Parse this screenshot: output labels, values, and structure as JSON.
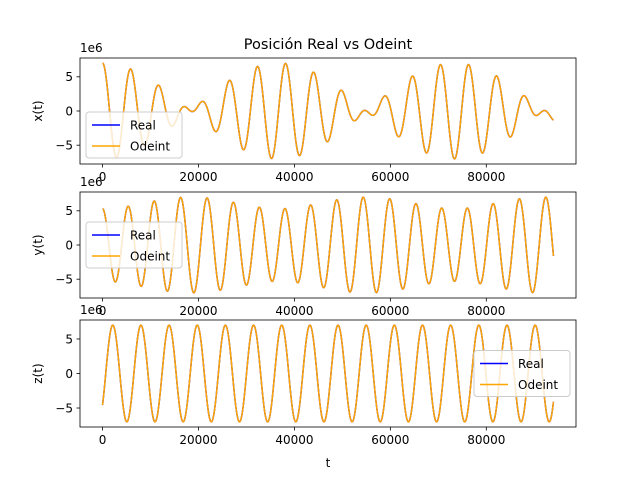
{
  "figure": {
    "title": "Posición Real vs Odeint",
    "xlabel": "t"
  },
  "colors": {
    "real": "#0000ff",
    "odeint": "#ffa500",
    "legend_frame": "#cccccc"
  },
  "chart_data": [
    {
      "type": "line",
      "title": "Posición Real vs Odeint",
      "ylabel": "x(t)",
      "xlabel": "",
      "offset_text": "1e6",
      "xlim": [
        -4700,
        98700
      ],
      "ylim": [
        -7750000,
        7750000
      ],
      "xticks": [
        0,
        20000,
        40000,
        60000,
        80000
      ],
      "yticks": [
        -5,
        0,
        5
      ],
      "legend_loc": "lower-left",
      "series": [
        {
          "name": "Real",
          "color": "#0000ff"
        },
        {
          "name": "Odeint",
          "color": "#ffa500"
        }
      ],
      "x_range": [
        0,
        94000
      ],
      "approx_formula": "x(t) = 7e6 * cos(0.00107*t) * cos(0.0000856*t)",
      "signal": {
        "amplitude": 7000000,
        "carrier_period": 5870,
        "envelope_angular": 8.56e-05,
        "envelope": "cos",
        "carrier": "cos"
      }
    },
    {
      "type": "line",
      "ylabel": "y(t)",
      "xlabel": "",
      "offset_text": "1e6",
      "xlim": [
        -4700,
        98700
      ],
      "ylim": [
        -7750000,
        7750000
      ],
      "xticks": [
        0,
        20000,
        40000,
        60000,
        80000
      ],
      "yticks": [
        -5,
        0,
        5
      ],
      "legend_loc": "center-left",
      "series": [
        {
          "name": "Real",
          "color": "#0000ff"
        },
        {
          "name": "Odeint",
          "color": "#ffa500"
        }
      ],
      "x_range": [
        0,
        94000
      ],
      "approx_formula": "y(t) = -7e6 * sin(0.00107*t) * sin(0.0000856*t) + 5.3e6 * cos(0.00107*t) * cos(0.0000856*t)",
      "signal": {
        "amplitude": 7000000,
        "carrier_period": 5870,
        "envelope_angular": 8.56e-05,
        "envelope": "mixed",
        "carrier": "mixed"
      }
    },
    {
      "type": "line",
      "ylabel": "z(t)",
      "xlabel": "t",
      "offset_text": "1e6",
      "xlim": [
        -4700,
        98700
      ],
      "ylim": [
        -7750000,
        7750000
      ],
      "xticks": [
        0,
        20000,
        40000,
        60000,
        80000
      ],
      "yticks": [
        -5,
        0,
        5
      ],
      "legend_loc": "center-right",
      "series": [
        {
          "name": "Real",
          "color": "#0000ff"
        },
        {
          "name": "Odeint",
          "color": "#ffa500"
        }
      ],
      "x_range": [
        0,
        94000
      ],
      "approx_formula": "z(t) = -7e6 * cos(0.00107*t + 0.86)",
      "signal": {
        "amplitude": 7000000,
        "carrier_period": 5870,
        "phase": 0.86
      }
    }
  ]
}
